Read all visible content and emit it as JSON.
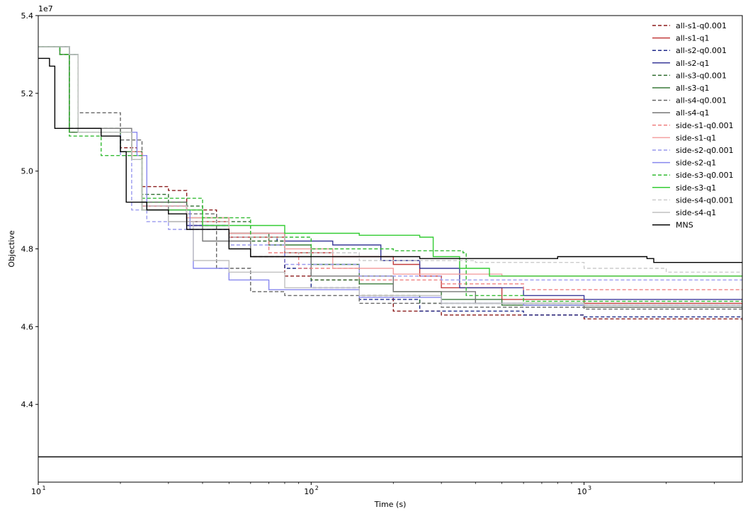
{
  "chart_data": {
    "type": "line",
    "title": "",
    "xlabel": "Time (s)",
    "ylabel": "Objective",
    "xscale": "log",
    "xlim": [
      10,
      3800
    ],
    "ylim": [
      42000000,
      54000000
    ],
    "y_offset_text": "1e7",
    "y_ticks": [
      44000000,
      46000000,
      48000000,
      50000000,
      52000000,
      54000000
    ],
    "y_tick_labels": [
      "4.4",
      "4.6",
      "4.8",
      "5.0",
      "5.2",
      "5.4"
    ],
    "x_ticks": [
      10,
      100,
      1000
    ],
    "x_tick_labels": [
      "10",
      "10",
      "10"
    ],
    "x_tick_exponents": [
      "1",
      "2",
      "3"
    ],
    "grid": false,
    "legend_position": "top-right",
    "reference_line": {
      "y": 42650000,
      "color": "#000000"
    },
    "series": [
      {
        "name": "all-s1-q0.001",
        "color": "#8b1a1a",
        "dashed": true,
        "points": [
          [
            10,
            53.2
          ],
          [
            12,
            53.0
          ],
          [
            13,
            51.0
          ],
          [
            20,
            50.6
          ],
          [
            23,
            50.5
          ],
          [
            24,
            49.6
          ],
          [
            30,
            49.5
          ],
          [
            35,
            49.0
          ],
          [
            45,
            48.8
          ],
          [
            50,
            48.3
          ],
          [
            60,
            47.8
          ],
          [
            80,
            47.3
          ],
          [
            100,
            47.2
          ],
          [
            150,
            46.8
          ],
          [
            200,
            46.4
          ],
          [
            300,
            46.3
          ],
          [
            1000,
            46.2
          ],
          [
            3800,
            46.1
          ]
        ]
      },
      {
        "name": "all-s1-q1",
        "color": "#c23b3b",
        "dashed": false,
        "points": [
          [
            10,
            53.2
          ],
          [
            13,
            53.0
          ],
          [
            14,
            51.0
          ],
          [
            22,
            50.4
          ],
          [
            24,
            49.0
          ],
          [
            35,
            48.7
          ],
          [
            50,
            48.3
          ],
          [
            80,
            47.9
          ],
          [
            120,
            47.8
          ],
          [
            200,
            47.6
          ],
          [
            250,
            47.3
          ],
          [
            300,
            47.0
          ],
          [
            500,
            46.7
          ],
          [
            1000,
            46.6
          ],
          [
            3800,
            46.55
          ]
        ]
      },
      {
        "name": "all-s2-q0.001",
        "color": "#1f2a8a",
        "dashed": true,
        "points": [
          [
            10,
            53.2
          ],
          [
            13,
            53.0
          ],
          [
            14,
            51.0
          ],
          [
            22,
            50.3
          ],
          [
            24,
            49.1
          ],
          [
            35,
            48.6
          ],
          [
            50,
            48.3
          ],
          [
            75,
            48.2
          ],
          [
            80,
            47.5
          ],
          [
            100,
            47.0
          ],
          [
            150,
            46.7
          ],
          [
            250,
            46.4
          ],
          [
            600,
            46.3
          ],
          [
            1000,
            46.25
          ],
          [
            3800,
            46.2
          ]
        ]
      },
      {
        "name": "all-s2-q1",
        "color": "#3a3a99",
        "dashed": false,
        "points": [
          [
            10,
            53.2
          ],
          [
            13,
            53.0
          ],
          [
            14,
            51.0
          ],
          [
            22,
            50.3
          ],
          [
            24,
            49.1
          ],
          [
            35,
            48.6
          ],
          [
            50,
            48.4
          ],
          [
            80,
            48.2
          ],
          [
            120,
            48.1
          ],
          [
            180,
            47.7
          ],
          [
            250,
            47.5
          ],
          [
            350,
            47.0
          ],
          [
            600,
            46.8
          ],
          [
            1000,
            46.7
          ],
          [
            3800,
            46.7
          ]
        ]
      },
      {
        "name": "all-s3-q0.001",
        "color": "#2e6b2e",
        "dashed": true,
        "points": [
          [
            10,
            53.2
          ],
          [
            12,
            53.0
          ],
          [
            13,
            51.1
          ],
          [
            20,
            50.5
          ],
          [
            24,
            49.4
          ],
          [
            30,
            49.1
          ],
          [
            40,
            48.7
          ],
          [
            60,
            48.2
          ],
          [
            80,
            47.9
          ],
          [
            100,
            47.2
          ],
          [
            150,
            46.8
          ],
          [
            250,
            46.6
          ],
          [
            500,
            46.6
          ],
          [
            1000,
            46.55
          ],
          [
            3800,
            46.5
          ]
        ]
      },
      {
        "name": "all-s3-q1",
        "color": "#3a7a3a",
        "dashed": false,
        "points": [
          [
            10,
            53.2
          ],
          [
            12,
            53.0
          ],
          [
            13,
            51.0
          ],
          [
            20,
            50.5
          ],
          [
            24,
            49.2
          ],
          [
            35,
            48.8
          ],
          [
            50,
            48.4
          ],
          [
            70,
            48.1
          ],
          [
            100,
            47.6
          ],
          [
            150,
            47.1
          ],
          [
            200,
            46.9
          ],
          [
            300,
            46.7
          ],
          [
            500,
            46.55
          ],
          [
            1000,
            46.5
          ],
          [
            3800,
            46.45
          ]
        ]
      },
      {
        "name": "all-s4-q0.001",
        "color": "#666666",
        "dashed": true,
        "points": [
          [
            10,
            53.2
          ],
          [
            13,
            53.0
          ],
          [
            14,
            51.5
          ],
          [
            20,
            50.8
          ],
          [
            24,
            49.2
          ],
          [
            35,
            48.9
          ],
          [
            45,
            47.5
          ],
          [
            60,
            46.9
          ],
          [
            80,
            46.8
          ],
          [
            150,
            46.6
          ],
          [
            300,
            46.5
          ],
          [
            1000,
            46.45
          ],
          [
            3800,
            46.45
          ]
        ]
      },
      {
        "name": "all-s4-q1",
        "color": "#777777",
        "dashed": false,
        "points": [
          [
            10,
            53.2
          ],
          [
            13,
            53.0
          ],
          [
            14,
            51.1
          ],
          [
            22,
            50.3
          ],
          [
            24,
            49.1
          ],
          [
            30,
            48.7
          ],
          [
            40,
            48.2
          ],
          [
            60,
            47.8
          ],
          [
            100,
            47.3
          ],
          [
            200,
            46.9
          ],
          [
            400,
            46.6
          ],
          [
            1000,
            46.5
          ],
          [
            3800,
            46.5
          ]
        ]
      },
      {
        "name": "side-s1-q0.001",
        "color": "#f08080",
        "dashed": true,
        "points": [
          [
            10,
            53.2
          ],
          [
            13,
            53.0
          ],
          [
            14,
            51.0
          ],
          [
            22,
            50.5
          ],
          [
            24,
            49.1
          ],
          [
            35,
            48.7
          ],
          [
            50,
            48.3
          ],
          [
            70,
            47.9
          ],
          [
            90,
            47.5
          ],
          [
            150,
            47.2
          ],
          [
            300,
            47.1
          ],
          [
            600,
            46.95
          ],
          [
            3800,
            46.95
          ]
        ]
      },
      {
        "name": "side-s1-q1",
        "color": "#f4a0a0",
        "dashed": false,
        "points": [
          [
            10,
            53.2
          ],
          [
            13,
            53.0
          ],
          [
            14,
            51.0
          ],
          [
            22,
            50.4
          ],
          [
            24,
            49.1
          ],
          [
            35,
            48.8
          ],
          [
            50,
            48.4
          ],
          [
            80,
            48.0
          ],
          [
            120,
            47.5
          ],
          [
            200,
            47.35
          ],
          [
            500,
            47.3
          ],
          [
            3800,
            47.3
          ]
        ]
      },
      {
        "name": "side-s2-q0.001",
        "color": "#9999ee",
        "dashed": true,
        "points": [
          [
            10,
            53.2
          ],
          [
            13,
            53.0
          ],
          [
            14,
            51.0
          ],
          [
            20,
            50.4
          ],
          [
            22,
            49.0
          ],
          [
            25,
            48.7
          ],
          [
            30,
            48.5
          ],
          [
            50,
            48.1
          ],
          [
            80,
            47.6
          ],
          [
            150,
            47.3
          ],
          [
            300,
            47.2
          ],
          [
            600,
            47.2
          ],
          [
            3800,
            47.2
          ]
        ]
      },
      {
        "name": "side-s2-q1",
        "color": "#8888ee",
        "dashed": false,
        "points": [
          [
            10,
            53.2
          ],
          [
            13,
            53.0
          ],
          [
            14,
            51.0
          ],
          [
            23,
            50.4
          ],
          [
            25,
            49.0
          ],
          [
            36,
            48.5
          ],
          [
            37,
            47.5
          ],
          [
            50,
            47.2
          ],
          [
            70,
            46.95
          ],
          [
            150,
            46.75
          ],
          [
            300,
            46.6
          ],
          [
            600,
            46.55
          ],
          [
            3800,
            46.55
          ]
        ]
      },
      {
        "name": "side-s3-q0.001",
        "color": "#33bb33",
        "dashed": true,
        "points": [
          [
            10,
            53.2
          ],
          [
            12,
            53.0
          ],
          [
            13,
            50.9
          ],
          [
            17,
            50.4
          ],
          [
            24,
            49.3
          ],
          [
            40,
            48.8
          ],
          [
            60,
            48.3
          ],
          [
            100,
            48.0
          ],
          [
            200,
            47.95
          ],
          [
            360,
            47.9
          ],
          [
            370,
            46.8
          ],
          [
            600,
            46.65
          ],
          [
            3800,
            46.65
          ]
        ]
      },
      {
        "name": "side-s3-q1",
        "color": "#33cc33",
        "dashed": false,
        "points": [
          [
            10,
            53.2
          ],
          [
            13,
            53.0
          ],
          [
            14,
            51.0
          ],
          [
            22,
            50.3
          ],
          [
            24,
            49.0
          ],
          [
            40,
            48.6
          ],
          [
            80,
            48.4
          ],
          [
            150,
            48.35
          ],
          [
            250,
            48.3
          ],
          [
            280,
            47.8
          ],
          [
            350,
            47.5
          ],
          [
            450,
            47.3
          ],
          [
            1000,
            47.3
          ],
          [
            3800,
            47.3
          ]
        ]
      },
      {
        "name": "side-s4-q0.001",
        "color": "#cccccc",
        "dashed": true,
        "points": [
          [
            10,
            53.2
          ],
          [
            13,
            53.0
          ],
          [
            14,
            51.0
          ],
          [
            22,
            50.3
          ],
          [
            24,
            49.1
          ],
          [
            35,
            48.7
          ],
          [
            50,
            48.3
          ],
          [
            80,
            47.9
          ],
          [
            150,
            47.7
          ],
          [
            400,
            47.65
          ],
          [
            1000,
            47.5
          ],
          [
            2000,
            47.4
          ],
          [
            3800,
            47.4
          ]
        ]
      },
      {
        "name": "side-s4-q1",
        "color": "#c0c0c0",
        "dashed": false,
        "points": [
          [
            10,
            53.2
          ],
          [
            13,
            53.0
          ],
          [
            14,
            51.0
          ],
          [
            22,
            50.3
          ],
          [
            24,
            49.0
          ],
          [
            30,
            48.7
          ],
          [
            37,
            47.7
          ],
          [
            50,
            47.4
          ],
          [
            80,
            47.0
          ],
          [
            150,
            46.8
          ],
          [
            300,
            46.6
          ],
          [
            1000,
            46.55
          ],
          [
            3800,
            46.55
          ]
        ]
      },
      {
        "name": "MNS",
        "color": "#000000",
        "dashed": false,
        "points": [
          [
            10,
            52.9
          ],
          [
            11,
            52.7
          ],
          [
            11.5,
            51.1
          ],
          [
            17,
            50.9
          ],
          [
            20,
            50.5
          ],
          [
            21,
            49.2
          ],
          [
            25,
            49.0
          ],
          [
            30,
            48.9
          ],
          [
            35,
            48.5
          ],
          [
            50,
            48.0
          ],
          [
            60,
            47.8
          ],
          [
            100,
            47.8
          ],
          [
            250,
            47.75
          ],
          [
            800,
            47.8
          ],
          [
            1700,
            47.75
          ],
          [
            1800,
            47.65
          ],
          [
            3800,
            47.65
          ]
        ]
      }
    ]
  }
}
